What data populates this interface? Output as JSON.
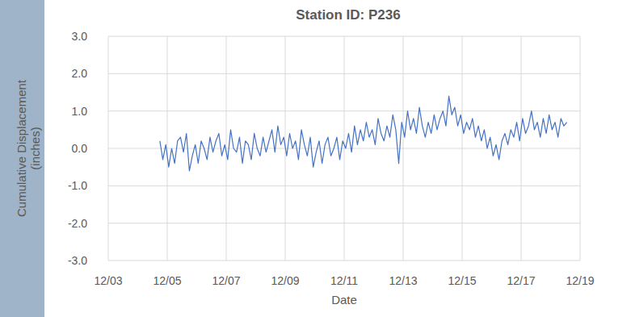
{
  "chart_data": {
    "type": "line",
    "title": "Station ID: P236",
    "xlabel": "Date",
    "ylabel": [
      "Cumulative Displacement",
      "(inches)"
    ],
    "xlim": [
      3,
      19
    ],
    "xticks": [
      {
        "value": 3,
        "label": "12/03"
      },
      {
        "value": 5,
        "label": "12/05"
      },
      {
        "value": 7,
        "label": "12/07"
      },
      {
        "value": 9,
        "label": "12/09"
      },
      {
        "value": 11,
        "label": "12/11"
      },
      {
        "value": 13,
        "label": "12/13"
      },
      {
        "value": 15,
        "label": "12/15"
      },
      {
        "value": 17,
        "label": "12/17"
      },
      {
        "value": 19,
        "label": "12/19"
      }
    ],
    "ylim": [
      -3,
      3
    ],
    "yticks": [
      {
        "value": -3,
        "label": "-3.0"
      },
      {
        "value": -2,
        "label": "-2.0"
      },
      {
        "value": -1,
        "label": "-1.0"
      },
      {
        "value": 0,
        "label": "0.0"
      },
      {
        "value": 1,
        "label": "1.0"
      },
      {
        "value": 2,
        "label": "2.0"
      },
      {
        "value": 3,
        "label": "3.0"
      }
    ],
    "grid": true,
    "x": [
      4.75,
      4.85,
      4.95,
      5.05,
      5.15,
      5.25,
      5.35,
      5.45,
      5.55,
      5.65,
      5.75,
      5.85,
      5.95,
      6.05,
      6.15,
      6.25,
      6.35,
      6.45,
      6.55,
      6.65,
      6.75,
      6.85,
      6.95,
      7.05,
      7.15,
      7.25,
      7.35,
      7.45,
      7.55,
      7.65,
      7.75,
      7.85,
      7.95,
      8.05,
      8.15,
      8.25,
      8.35,
      8.45,
      8.55,
      8.65,
      8.75,
      8.85,
      8.95,
      9.05,
      9.15,
      9.25,
      9.35,
      9.45,
      9.55,
      9.65,
      9.75,
      9.85,
      9.95,
      10.05,
      10.15,
      10.25,
      10.35,
      10.45,
      10.55,
      10.65,
      10.75,
      10.85,
      10.95,
      11.05,
      11.15,
      11.25,
      11.35,
      11.45,
      11.55,
      11.65,
      11.75,
      11.85,
      11.95,
      12.05,
      12.15,
      12.25,
      12.35,
      12.45,
      12.55,
      12.65,
      12.75,
      12.85,
      12.95,
      13.05,
      13.15,
      13.25,
      13.35,
      13.45,
      13.55,
      13.65,
      13.75,
      13.85,
      13.95,
      14.05,
      14.15,
      14.25,
      14.35,
      14.45,
      14.55,
      14.65,
      14.75,
      14.85,
      14.95,
      15.05,
      15.15,
      15.25,
      15.35,
      15.45,
      15.55,
      15.65,
      15.75,
      15.85,
      15.95,
      16.05,
      16.15,
      16.25,
      16.35,
      16.45,
      16.55,
      16.65,
      16.75,
      16.85,
      16.95,
      17.05,
      17.15,
      17.25,
      17.35,
      17.45,
      17.55,
      17.65,
      17.75,
      17.85,
      17.95,
      18.05,
      18.15,
      18.25,
      18.35,
      18.45,
      18.55
    ],
    "series": [
      {
        "color": "#4472c4",
        "values": [
          0.2,
          -0.3,
          0.1,
          -0.5,
          0.0,
          -0.4,
          0.2,
          0.3,
          -0.1,
          0.4,
          -0.6,
          -0.2,
          0.1,
          -0.4,
          0.2,
          0.0,
          -0.3,
          0.3,
          -0.1,
          0.2,
          0.4,
          -0.2,
          0.1,
          -0.3,
          0.5,
          0.0,
          -0.1,
          0.3,
          -0.4,
          0.2,
          0.1,
          -0.3,
          0.4,
          0.0,
          -0.2,
          0.3,
          -0.1,
          0.2,
          0.5,
          -0.1,
          0.6,
          0.1,
          0.3,
          -0.2,
          0.4,
          0.0,
          0.2,
          -0.3,
          0.5,
          0.1,
          -0.2,
          0.3,
          -0.5,
          -0.1,
          0.2,
          -0.4,
          0.1,
          0.3,
          -0.2,
          0.0,
          0.3,
          -0.3,
          0.2,
          0.0,
          0.4,
          -0.1,
          0.6,
          0.1,
          0.5,
          0.2,
          0.7,
          0.3,
          0.5,
          0.1,
          0.8,
          0.4,
          0.2,
          0.6,
          0.3,
          0.9,
          0.5,
          -0.4,
          0.7,
          0.3,
          1.0,
          0.5,
          0.8,
          0.4,
          1.1,
          0.6,
          0.3,
          0.7,
          0.4,
          0.9,
          0.5,
          0.8,
          1.0,
          0.6,
          1.4,
          0.9,
          1.1,
          0.6,
          0.9,
          0.4,
          0.7,
          0.5,
          0.8,
          0.3,
          0.6,
          0.2,
          0.5,
          0.0,
          0.3,
          -0.2,
          0.1,
          -0.3,
          0.2,
          0.4,
          0.1,
          0.5,
          0.3,
          0.7,
          0.2,
          0.8,
          0.4,
          0.6,
          1.0,
          0.5,
          0.7,
          0.3,
          0.8,
          0.4,
          0.9,
          0.5,
          0.7,
          0.3,
          0.8,
          0.6,
          0.7
        ]
      }
    ]
  }
}
